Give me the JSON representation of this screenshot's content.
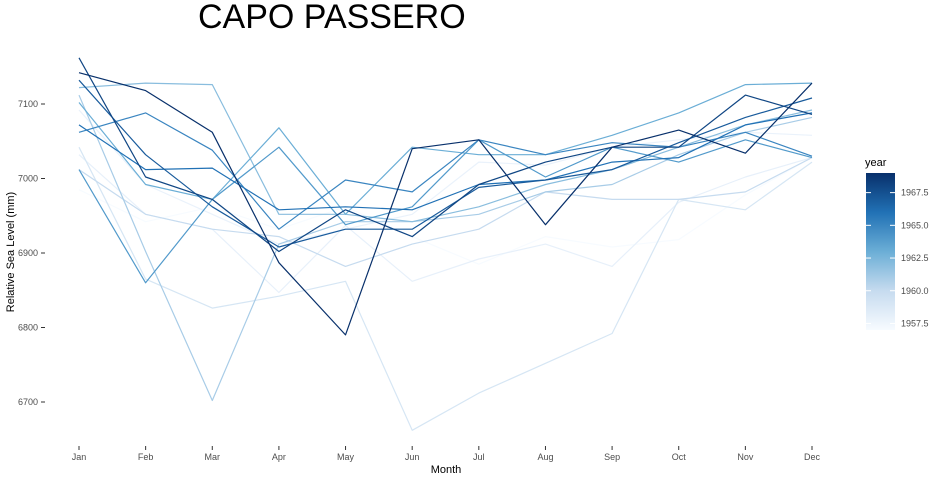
{
  "chart_data": {
    "type": "line",
    "title": "CAPO PASSERO",
    "xlabel": "Month",
    "ylabel": "Relative Sea Level (mm)",
    "categories": [
      "Jan",
      "Feb",
      "Mar",
      "Apr",
      "May",
      "Jun",
      "Jul",
      "Aug",
      "Sep",
      "Oct",
      "Nov",
      "Dec"
    ],
    "yticks": [
      6700,
      6800,
      6900,
      7000,
      7100
    ],
    "ylim": [
      6650,
      7165
    ],
    "grid": false,
    "legend": {
      "title": "year",
      "position": "right",
      "labels": [
        "1967.5",
        "1965.0",
        "1962.5",
        "1960.0",
        "1957.5"
      ],
      "ticks": [
        1967.5,
        1965.0,
        1962.5,
        1960.0,
        1957.5
      ],
      "range": [
        1957,
        1969
      ],
      "color_low": "#f7fbff",
      "color_high": "#08306b"
    },
    "series": [
      {
        "year": 1957,
        "values": [
          6985,
          6942,
          6962,
          6932,
          6962,
          6922,
          6885,
          6922,
          6908,
          6918,
          6978,
          7028
        ]
      },
      {
        "year": 1958,
        "values": [
          7032,
          6952,
          6932,
          6847,
          6937,
          6862,
          6892,
          6912,
          6882,
          6968,
          7002,
          7028
        ]
      },
      {
        "year": 1959,
        "values": [
          7042,
          6865,
          6826,
          6842,
          6862,
          6662,
          6712,
          6752,
          6792,
          6972,
          6958,
          7022
        ]
      },
      {
        "year": 1960,
        "values": [
          7012,
          6952,
          6932,
          6922,
          6882,
          6912,
          6932,
          6982,
          6972,
          6972,
          6982,
          7028
        ]
      },
      {
        "year": 1961,
        "values": [
          7112,
          6902,
          6702,
          6912,
          6942,
          6942,
          6952,
          6982,
          6992,
          7032,
          7062,
          7082
        ]
      },
      {
        "year": 1962,
        "values": [
          7122,
          7128,
          7126,
          6952,
          6952,
          6942,
          6962,
          6992,
          7012,
          7042,
          7072,
          7092
        ]
      },
      {
        "year": 1963,
        "values": [
          7102,
          6992,
          6972,
          7068,
          6952,
          7042,
          7032,
          7032,
          7058,
          7088,
          7126,
          7128
        ]
      },
      {
        "year": 1964,
        "values": [
          7012,
          6860,
          6972,
          7042,
          6938,
          6962,
          7052,
          7002,
          7042,
          7022,
          7052,
          7028
        ]
      },
      {
        "year": 1965,
        "values": [
          7062,
          7088,
          7038,
          6932,
          6998,
          6982,
          7052,
          7032,
          7048,
          7042,
          7062,
          7030
        ]
      },
      {
        "year": 1966,
        "values": [
          7072,
          7012,
          7014,
          6958,
          6962,
          6958,
          6992,
          6998,
          7022,
          7028,
          7072,
          7088
        ]
      },
      {
        "year": 1967,
        "values": [
          7132,
          7032,
          6962,
          6908,
          6932,
          6932,
          6988,
          6998,
          7012,
          7048,
          7082,
          7108
        ]
      },
      {
        "year": 1968,
        "values": [
          7162,
          7002,
          6972,
          6902,
          6958,
          6922,
          6992,
          7022,
          7042,
          7042,
          7112,
          7086
        ]
      },
      {
        "year": 1969,
        "values": [
          7142,
          7118,
          7062,
          6887,
          6790,
          7040,
          7052,
          6938,
          7042,
          7065,
          7034,
          7128
        ]
      },
      {
        "year": 1957.8,
        "values": [
          7092,
          6992,
          6952,
          6912,
          6932,
          6952,
          7022,
          7018,
          7042,
          7052,
          7062,
          7058
        ]
      }
    ]
  }
}
